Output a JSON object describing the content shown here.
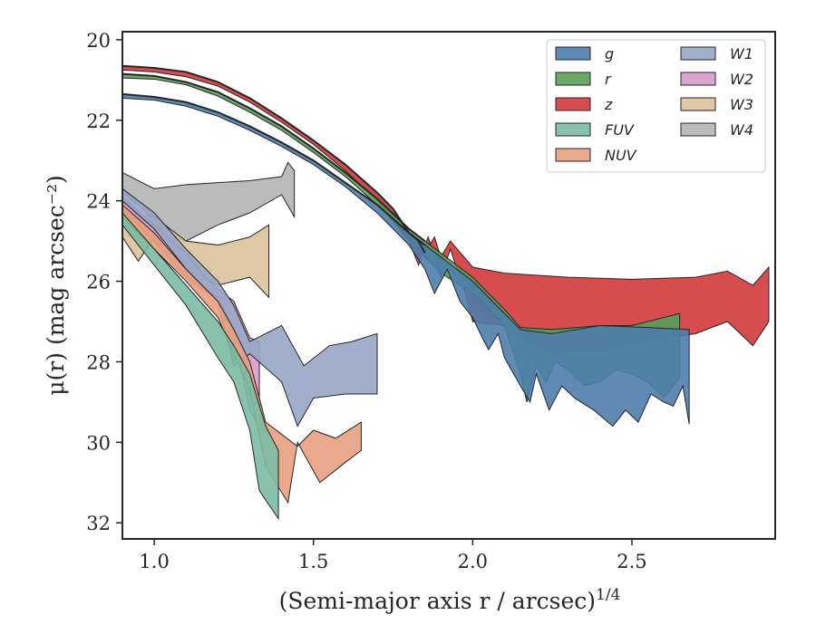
{
  "chart_data": {
    "type": "area",
    "xlabel": "(Semi-major axis r / arcsec)",
    "xlabel_superscript": "1/4",
    "ylabel": "μ(r) (mag arcsec⁻²)",
    "xlim": [
      0.9,
      2.95
    ],
    "ylim": [
      32.4,
      19.8
    ],
    "y_inverted": true,
    "x_ticks": [
      1.0,
      1.5,
      2.0,
      2.5
    ],
    "x_tick_labels": [
      "1.0",
      "1.5",
      "2.0",
      "2.5"
    ],
    "y_ticks": [
      20,
      22,
      24,
      26,
      28,
      30,
      32
    ],
    "y_tick_labels": [
      "20",
      "22",
      "24",
      "26",
      "28",
      "30",
      "32"
    ],
    "grid": false,
    "legend": {
      "placement": "top-right",
      "columns": 2
    },
    "series": [
      {
        "name": "g",
        "color": "#4c7dab",
        "upper": [
          [
            0.9,
            21.35
          ],
          [
            1.0,
            21.42
          ],
          [
            1.1,
            21.55
          ],
          [
            1.2,
            21.8
          ],
          [
            1.3,
            22.15
          ],
          [
            1.4,
            22.55
          ],
          [
            1.5,
            23.0
          ],
          [
            1.6,
            23.55
          ],
          [
            1.7,
            24.1
          ],
          [
            1.8,
            24.8
          ],
          [
            1.85,
            25.1
          ],
          [
            1.9,
            25.4
          ],
          [
            1.95,
            25.7
          ],
          [
            2.0,
            26.0
          ],
          [
            2.1,
            26.8
          ],
          [
            2.15,
            27.2
          ],
          [
            2.25,
            27.3
          ],
          [
            2.4,
            27.1
          ],
          [
            2.55,
            27.15
          ],
          [
            2.68,
            27.2
          ]
        ],
        "lower": [
          [
            0.9,
            21.45
          ],
          [
            1.0,
            21.5
          ],
          [
            1.1,
            21.65
          ],
          [
            1.2,
            21.9
          ],
          [
            1.3,
            22.25
          ],
          [
            1.4,
            22.65
          ],
          [
            1.5,
            23.1
          ],
          [
            1.6,
            23.65
          ],
          [
            1.7,
            24.3
          ],
          [
            1.8,
            25.1
          ],
          [
            1.85,
            25.7
          ],
          [
            1.88,
            26.3
          ],
          [
            1.92,
            25.7
          ],
          [
            1.96,
            26.5
          ],
          [
            2.0,
            26.9
          ],
          [
            2.03,
            27.4
          ],
          [
            2.05,
            27.7
          ],
          [
            2.08,
            27.3
          ],
          [
            2.1,
            27.9
          ],
          [
            2.15,
            28.6
          ],
          [
            2.18,
            29.0
          ],
          [
            2.2,
            28.3
          ],
          [
            2.24,
            29.2
          ],
          [
            2.28,
            28.6
          ],
          [
            2.32,
            28.9
          ],
          [
            2.38,
            29.2
          ],
          [
            2.44,
            29.6
          ],
          [
            2.48,
            29.2
          ],
          [
            2.52,
            29.5
          ],
          [
            2.56,
            28.8
          ],
          [
            2.6,
            29.0
          ],
          [
            2.63,
            29.1
          ],
          [
            2.66,
            28.6
          ],
          [
            2.68,
            29.55
          ]
        ]
      },
      {
        "name": "r",
        "color": "#5a9e55",
        "upper": [
          [
            0.9,
            20.85
          ],
          [
            1.0,
            20.9
          ],
          [
            1.1,
            21.05
          ],
          [
            1.2,
            21.3
          ],
          [
            1.3,
            21.7
          ],
          [
            1.4,
            22.15
          ],
          [
            1.5,
            22.7
          ],
          [
            1.6,
            23.3
          ],
          [
            1.7,
            23.95
          ],
          [
            1.8,
            24.7
          ],
          [
            1.85,
            25.0
          ],
          [
            1.9,
            25.3
          ],
          [
            2.0,
            25.9
          ],
          [
            2.1,
            26.7
          ],
          [
            2.15,
            27.15
          ],
          [
            2.25,
            27.2
          ],
          [
            2.4,
            27.1
          ],
          [
            2.5,
            27.1
          ],
          [
            2.65,
            26.8
          ]
        ],
        "lower": [
          [
            0.9,
            20.95
          ],
          [
            1.0,
            20.98
          ],
          [
            1.1,
            21.12
          ],
          [
            1.2,
            21.4
          ],
          [
            1.3,
            21.8
          ],
          [
            1.4,
            22.25
          ],
          [
            1.5,
            22.8
          ],
          [
            1.6,
            23.4
          ],
          [
            1.7,
            24.1
          ],
          [
            1.8,
            24.9
          ],
          [
            1.85,
            25.4
          ],
          [
            1.9,
            25.8
          ],
          [
            2.0,
            26.3
          ],
          [
            2.05,
            26.7
          ],
          [
            2.1,
            27.1
          ],
          [
            2.15,
            28.3
          ],
          [
            2.17,
            29.0
          ],
          [
            2.2,
            28.1
          ],
          [
            2.23,
            28.5
          ],
          [
            2.26,
            28.0
          ],
          [
            2.3,
            28.2
          ],
          [
            2.35,
            28.6
          ],
          [
            2.4,
            28.5
          ],
          [
            2.45,
            28.2
          ],
          [
            2.5,
            28.3
          ],
          [
            2.55,
            28.5
          ],
          [
            2.6,
            28.9
          ],
          [
            2.65,
            28.4
          ]
        ]
      },
      {
        "name": "z",
        "color": "#d1393c",
        "upper": [
          [
            0.9,
            20.65
          ],
          [
            1.0,
            20.7
          ],
          [
            1.1,
            20.8
          ],
          [
            1.2,
            21.05
          ],
          [
            1.3,
            21.45
          ],
          [
            1.4,
            21.95
          ],
          [
            1.5,
            22.5
          ],
          [
            1.6,
            23.1
          ],
          [
            1.7,
            23.8
          ],
          [
            1.75,
            24.2
          ],
          [
            1.8,
            24.8
          ],
          [
            1.83,
            25.0
          ],
          [
            1.85,
            25.3
          ],
          [
            1.88,
            24.9
          ],
          [
            1.9,
            25.4
          ],
          [
            1.93,
            25.0
          ],
          [
            2.0,
            25.65
          ],
          [
            2.1,
            25.8
          ],
          [
            2.3,
            25.9
          ],
          [
            2.5,
            25.95
          ],
          [
            2.7,
            25.9
          ],
          [
            2.8,
            25.75
          ],
          [
            2.88,
            26.1
          ],
          [
            2.93,
            25.65
          ]
        ],
        "lower": [
          [
            0.9,
            20.75
          ],
          [
            1.0,
            20.8
          ],
          [
            1.1,
            20.92
          ],
          [
            1.2,
            21.15
          ],
          [
            1.3,
            21.55
          ],
          [
            1.4,
            22.05
          ],
          [
            1.5,
            22.6
          ],
          [
            1.6,
            23.25
          ],
          [
            1.7,
            24.0
          ],
          [
            1.75,
            24.5
          ],
          [
            1.8,
            25.0
          ],
          [
            1.83,
            25.6
          ],
          [
            1.86,
            24.9
          ],
          [
            1.9,
            25.9
          ],
          [
            1.93,
            25.2
          ],
          [
            1.98,
            26.4
          ],
          [
            2.0,
            27.0
          ],
          [
            2.1,
            27.1
          ],
          [
            2.2,
            27.6
          ],
          [
            2.25,
            27.8
          ],
          [
            2.4,
            27.7
          ],
          [
            2.55,
            27.5
          ],
          [
            2.7,
            27.3
          ],
          [
            2.8,
            27.0
          ],
          [
            2.88,
            27.6
          ],
          [
            2.93,
            27.0
          ]
        ]
      },
      {
        "name": "FUV",
        "color": "#7bbba3",
        "upper": [
          [
            0.9,
            24.3
          ],
          [
            1.0,
            25.2
          ],
          [
            1.1,
            26.1
          ],
          [
            1.2,
            27.0
          ],
          [
            1.25,
            27.6
          ],
          [
            1.3,
            28.3
          ],
          [
            1.35,
            29.6
          ],
          [
            1.39,
            30.2
          ]
        ],
        "lower": [
          [
            0.9,
            24.6
          ],
          [
            1.0,
            25.6
          ],
          [
            1.1,
            26.6
          ],
          [
            1.2,
            27.9
          ],
          [
            1.25,
            28.5
          ],
          [
            1.3,
            29.7
          ],
          [
            1.33,
            31.2
          ],
          [
            1.39,
            31.9
          ]
        ]
      },
      {
        "name": "NUV",
        "color": "#e8a07f",
        "upper": [
          [
            0.9,
            24.1
          ],
          [
            1.0,
            24.8
          ],
          [
            1.1,
            25.7
          ],
          [
            1.2,
            26.5
          ],
          [
            1.25,
            27.2
          ],
          [
            1.3,
            28.0
          ],
          [
            1.35,
            29.5
          ],
          [
            1.45,
            30.1
          ],
          [
            1.5,
            29.7
          ],
          [
            1.57,
            29.9
          ],
          [
            1.65,
            29.5
          ]
        ],
        "lower": [
          [
            0.9,
            24.4
          ],
          [
            1.0,
            25.2
          ],
          [
            1.1,
            26.0
          ],
          [
            1.2,
            26.9
          ],
          [
            1.25,
            27.8
          ],
          [
            1.3,
            28.7
          ],
          [
            1.35,
            30.6
          ],
          [
            1.42,
            31.5
          ],
          [
            1.45,
            30.0
          ],
          [
            1.52,
            31.0
          ],
          [
            1.6,
            30.5
          ],
          [
            1.65,
            30.2
          ]
        ]
      },
      {
        "name": "W1",
        "color": "#98a6c6",
        "upper": [
          [
            0.9,
            23.7
          ],
          [
            1.0,
            24.3
          ],
          [
            1.1,
            25.2
          ],
          [
            1.2,
            26.0
          ],
          [
            1.25,
            26.6
          ],
          [
            1.3,
            27.5
          ],
          [
            1.4,
            27.1
          ],
          [
            1.47,
            28.1
          ],
          [
            1.55,
            27.6
          ],
          [
            1.62,
            27.5
          ],
          [
            1.7,
            27.3
          ]
        ],
        "lower": [
          [
            0.9,
            24.0
          ],
          [
            1.0,
            24.7
          ],
          [
            1.1,
            25.7
          ],
          [
            1.2,
            26.5
          ],
          [
            1.25,
            28.1
          ],
          [
            1.3,
            27.8
          ],
          [
            1.4,
            28.5
          ],
          [
            1.45,
            29.6
          ],
          [
            1.5,
            28.9
          ],
          [
            1.6,
            28.8
          ],
          [
            1.7,
            28.8
          ]
        ]
      },
      {
        "name": "W2",
        "color": "#d69bc9",
        "upper": [
          [
            0.9,
            23.9
          ],
          [
            1.0,
            24.6
          ],
          [
            1.1,
            25.3
          ],
          [
            1.15,
            25.8
          ],
          [
            1.2,
            26.2
          ],
          [
            1.25,
            26.5
          ],
          [
            1.3,
            27.4
          ],
          [
            1.33,
            27.5
          ]
        ],
        "lower": [
          [
            0.9,
            24.2
          ],
          [
            1.0,
            25.0
          ],
          [
            1.1,
            25.9
          ],
          [
            1.15,
            26.2
          ],
          [
            1.2,
            26.4
          ],
          [
            1.25,
            27.2
          ],
          [
            1.3,
            29.2
          ],
          [
            1.33,
            29.6
          ]
        ]
      },
      {
        "name": "W3",
        "color": "#dcc29c",
        "upper": [
          [
            0.9,
            24.3
          ],
          [
            1.0,
            24.4
          ],
          [
            1.1,
            25.0
          ],
          [
            1.2,
            25.1
          ],
          [
            1.3,
            24.9
          ],
          [
            1.36,
            24.6
          ]
        ],
        "lower": [
          [
            0.9,
            24.9
          ],
          [
            0.95,
            25.5
          ],
          [
            1.0,
            24.9
          ],
          [
            1.1,
            25.7
          ],
          [
            1.2,
            26.1
          ],
          [
            1.3,
            25.9
          ],
          [
            1.36,
            26.4
          ]
        ]
      },
      {
        "name": "W4",
        "color": "#b4b4b4",
        "upper": [
          [
            0.9,
            23.3
          ],
          [
            1.0,
            23.7
          ],
          [
            1.1,
            23.6
          ],
          [
            1.2,
            23.55
          ],
          [
            1.3,
            23.5
          ],
          [
            1.4,
            23.4
          ],
          [
            1.42,
            23.05
          ],
          [
            1.44,
            23.25
          ]
        ],
        "lower": [
          [
            0.9,
            23.8
          ],
          [
            0.95,
            24.1
          ],
          [
            1.0,
            24.5
          ],
          [
            1.05,
            24.9
          ],
          [
            1.1,
            25.0
          ],
          [
            1.2,
            24.6
          ],
          [
            1.3,
            24.3
          ],
          [
            1.4,
            23.85
          ],
          [
            1.44,
            24.4
          ]
        ]
      }
    ]
  }
}
